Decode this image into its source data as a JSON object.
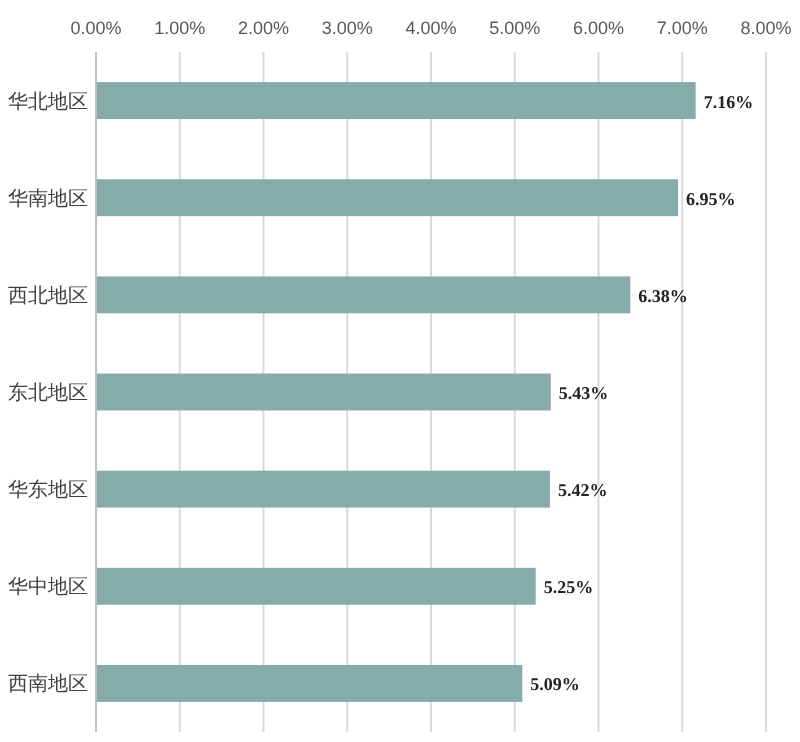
{
  "chart_data": {
    "type": "bar",
    "orientation": "horizontal",
    "categories": [
      "华北地区",
      "华南地区",
      "西北地区",
      "东北地区",
      "华东地区",
      "华中地区",
      "西南地区"
    ],
    "values": [
      7.16,
      6.95,
      6.38,
      5.43,
      5.42,
      5.25,
      5.09
    ],
    "value_labels": [
      "7.16%",
      "6.95%",
      "6.38%",
      "5.43%",
      "5.42%",
      "5.25%",
      "5.09%"
    ],
    "color": "#85acab",
    "xlim": [
      0,
      8
    ],
    "xticks": [
      {
        "value": 0,
        "label": "0.00%"
      },
      {
        "value": 1,
        "label": "1.00%"
      },
      {
        "value": 2,
        "label": "2.00%"
      },
      {
        "value": 3,
        "label": "3.00%"
      },
      {
        "value": 4,
        "label": "4.00%"
      },
      {
        "value": 5,
        "label": "5.00%"
      },
      {
        "value": 6,
        "label": "6.00%"
      },
      {
        "value": 7,
        "label": "7.00%"
      },
      {
        "value": 8,
        "label": "8.00%"
      }
    ],
    "grid": "x"
  }
}
